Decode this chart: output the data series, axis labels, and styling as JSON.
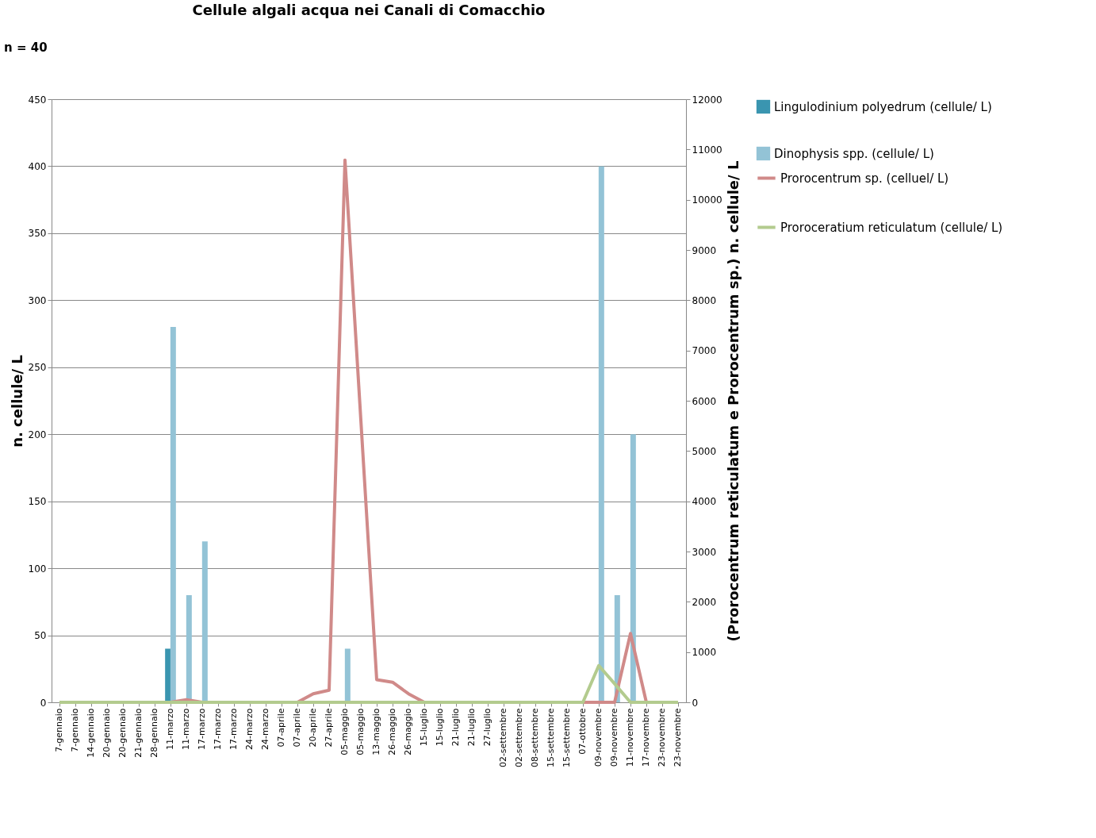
{
  "chart_data": {
    "type": "bar",
    "title": "Cellule algali acqua nei Canali di Comacchio",
    "annotations": [
      "n = 40"
    ],
    "ylabel": "n. cellule/ L",
    "y2label": "(Prorocentrum reticulatum e Prorocentrum sp.) n. cellule/ L",
    "categories": [
      "7-gennaio",
      "7-gennaio",
      "14-gennaio",
      "20-gennaio",
      "20-gennaio",
      "21-gennaio",
      "28-gennaio",
      "11-marzo",
      "11-marzo",
      "17-marzo",
      "17-marzo",
      "17-marzo",
      "24-marzo",
      "24-marzo",
      "07-aprile",
      "07-aprile",
      "20-aprile",
      "27-aprile",
      "05-maggio",
      "05-maggio",
      "13-maggio",
      "26-maggio",
      "26-maggio",
      "15-luglio",
      "15-luglio",
      "21-luglio",
      "21-luglio",
      "27-luglio",
      "02-settembre",
      "02-settembre",
      "08-settembre",
      "15-settembre",
      "15-settembre",
      "07-ottobre",
      "09-novembre",
      "09-novembre",
      "11-novembre",
      "17-novembre",
      "23-novembre",
      "23-novembre"
    ],
    "series": [
      {
        "name": "Lingulodinium polyedrum (cellule/ L)",
        "color": "#3a95b0",
        "values": [
          0,
          0,
          0,
          0,
          0,
          0,
          0,
          40,
          0,
          0,
          0,
          0,
          0,
          0,
          0,
          0,
          0,
          0,
          0,
          0,
          0,
          0,
          0,
          0,
          0,
          0,
          0,
          0,
          0,
          0,
          0,
          0,
          0,
          0,
          0,
          0,
          0,
          0,
          0,
          0
        ]
      },
      {
        "name": "Dinophysis spp. (cellule/ L)",
        "color": "#93c3d6",
        "values": [
          0,
          0,
          0,
          0,
          0,
          0,
          0,
          280,
          80,
          120,
          0,
          0,
          0,
          0,
          0,
          0,
          0,
          0,
          40,
          0,
          0,
          0,
          0,
          0,
          0,
          0,
          0,
          0,
          0,
          0,
          0,
          0,
          0,
          0,
          400,
          80,
          200,
          0,
          0,
          0
        ]
      },
      {
        "name": "Prorocentrum sp. (celluel/ L)",
        "type": "line",
        "axis": "y2",
        "color": "#d08a89",
        "values": [
          null,
          null,
          null,
          null,
          null,
          null,
          null,
          0,
          50,
          0,
          null,
          null,
          null,
          null,
          null,
          0,
          170,
          240,
          10790,
          5620,
          450,
          400,
          170,
          0,
          null,
          null,
          null,
          null,
          null,
          null,
          null,
          null,
          null,
          0,
          0,
          0,
          1370,
          0,
          null,
          null
        ]
      },
      {
        "name": "Proroceratium reticulatum (cellule/ L)",
        "type": "line",
        "axis": "y2",
        "color": "#b3cb8e",
        "values": [
          0,
          0,
          0,
          0,
          0,
          0,
          0,
          0,
          0,
          0,
          0,
          0,
          0,
          0,
          0,
          0,
          0,
          0,
          0,
          0,
          0,
          0,
          0,
          0,
          0,
          0,
          0,
          0,
          0,
          0,
          0,
          0,
          0,
          0,
          730,
          370,
          0,
          0,
          0,
          0
        ]
      }
    ],
    "ylim": [
      0,
      450
    ],
    "yticks": [
      0,
      50,
      100,
      150,
      200,
      250,
      300,
      350,
      400,
      450
    ],
    "y2lim": [
      0,
      12000
    ],
    "y2ticks": [
      0,
      1000,
      2000,
      3000,
      4000,
      5000,
      6000,
      7000,
      8000,
      9000,
      10000,
      11000,
      12000
    ],
    "grid": "y",
    "legend": "right"
  }
}
